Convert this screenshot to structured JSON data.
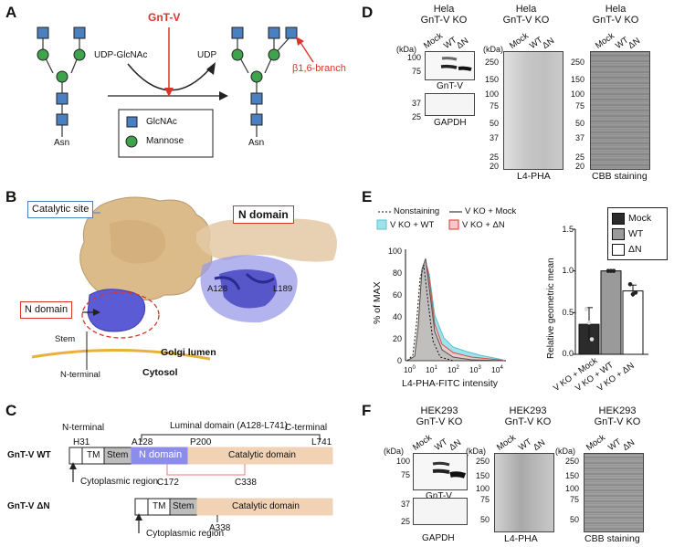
{
  "panels": {
    "a": "A",
    "b": "B",
    "c": "C",
    "d": "D",
    "e": "E",
    "f": "F"
  },
  "panel_a": {
    "enzyme": "GnT-V",
    "donor": "UDP-GlcNAc",
    "product": "UDP",
    "branch": "β1,6-branch",
    "asn_left": "Asn",
    "asn_right": "Asn",
    "legend": {
      "glcnac": "GlcNAc",
      "mannose": "Mannose"
    },
    "colors": {
      "glcnac": "#4a7fc1",
      "mannose": "#3ea34a",
      "arrow": "#d9362b"
    }
  },
  "panel_b": {
    "catalytic_site": "Catalytic site",
    "n_domain_left": "N domain",
    "n_domain_right": "N domain",
    "stem": "Stem",
    "n_terminal": "N-terminal",
    "golgi": "Golgi lumen",
    "cytosol": "Cytosol",
    "res1": "A128",
    "res2": "L189"
  },
  "panel_c": {
    "n_terminal": "N-terminal",
    "luminal": "Luminal domain (A128-L741)",
    "c_terminal": "C-terminal",
    "wt_label": "GnT-V WT",
    "dn_label": "GnT-V ΔN",
    "h31": "H31",
    "a128": "A128",
    "p200": "P200",
    "l741": "L741",
    "tm": "TM",
    "stem": "Stem",
    "n_domain": "N domain",
    "catalytic": "Catalytic domain",
    "cyto_wt": "Cytoplasmic region",
    "cyto_dn": "Cytoplasmic region",
    "c172": "C172",
    "c338": "C338",
    "a338": "A338",
    "colors": {
      "n_domain": "#8c8cec",
      "stem": "#bdbdbd",
      "catalytic": "#f1d2b4"
    }
  },
  "panel_d": {
    "headers": [
      "Hela\nGnT-V KO",
      "Hela\nGnT-V KO",
      "Hela\nGnT-V KO"
    ],
    "lanes": [
      "Mock",
      "WT",
      "ΔN"
    ],
    "kda": "(kDa)",
    "mw_gnt": [
      "100",
      "75"
    ],
    "mw_gapdh": [
      "37",
      "25"
    ],
    "mw_lpha": [
      "250",
      "150",
      "100",
      "75",
      "50",
      "37",
      "25",
      "20"
    ],
    "mw_cbb": [
      "250",
      "150",
      "100",
      "75",
      "50",
      "37",
      "25",
      "20"
    ],
    "gnt_label": "GnT-V",
    "gapdh_label": "GAPDH",
    "lpha_label": "L4-PHA",
    "cbb_label": "CBB staining"
  },
  "panel_e": {
    "legend": {
      "nonstaining": "Nonstaining",
      "mock": "V KO + Mock",
      "wt": "V KO + WT",
      "dn": "V KO + ΔN"
    },
    "histogram": {
      "ylabel": "% of MAX",
      "xlabel": "L4-PHA-FITC intensity",
      "y_ticks": [
        "0",
        "20",
        "40",
        "60",
        "80",
        "100"
      ],
      "x_ticks": [
        "10",
        "10",
        "10",
        "10",
        "10"
      ],
      "x_exps": [
        "1",
        "2",
        "3",
        "4"
      ],
      "x_exp0": "0"
    },
    "bar_legend": {
      "mock": "Mock",
      "wt": "WT",
      "dn": "ΔN"
    },
    "chart_data": {
      "type": "bar",
      "categories": [
        "V KO + Mock",
        "V KO + WT",
        "V KO + ΔN"
      ],
      "values": [
        0.36,
        1.0,
        0.76
      ],
      "errors": [
        0.2,
        0.0,
        0.07
      ],
      "points": [
        [
          0.54,
          0.38,
          0.18
        ],
        [
          1.0,
          1.0,
          1.0
        ],
        [
          0.84,
          0.72,
          0.74
        ]
      ],
      "ylabel": "Relative geometric mean",
      "y_ticks": [
        "0.0",
        "0.5",
        "1.0",
        "1.5"
      ],
      "ylim": [
        0,
        1.5
      ],
      "colors": [
        "#2b2b2b",
        "#9a9a9a",
        "#ffffff"
      ]
    }
  },
  "panel_f": {
    "headers": [
      "HEK293\nGnT-V KO",
      "HEK293\nGnT-V KO",
      "HEK293\nGnT-V KO"
    ],
    "lanes": [
      "Mock",
      "WT",
      "ΔN"
    ],
    "kda": "(kDa)",
    "mw_gnt": [
      "100",
      "75"
    ],
    "mw_gapdh": [
      "37",
      "25"
    ],
    "mw_lpha": [
      "250",
      "150",
      "100",
      "75",
      "50"
    ],
    "mw_cbb": [
      "250",
      "150",
      "100",
      "75",
      "50"
    ],
    "gnt_label": "GnT-V",
    "gapdh_label": "GAPDH",
    "lpha_label": "L4-PHA",
    "cbb_label": "CBB staining"
  }
}
